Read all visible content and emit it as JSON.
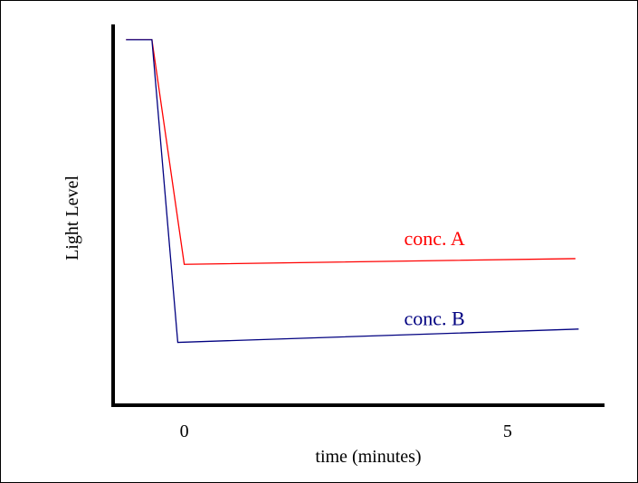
{
  "chart_data": {
    "type": "line",
    "title": "",
    "xlabel": "time (minutes)",
    "ylabel": "Light Level",
    "x_ticks": [
      {
        "value": 0,
        "label": "0"
      },
      {
        "value": 5,
        "label": "5"
      }
    ],
    "xlim": [
      -1.1,
      6.5
    ],
    "ylim": [
      0,
      1
    ],
    "grid": false,
    "legend": "none",
    "series": [
      {
        "name": "conc. A",
        "color": "#ff0000",
        "label_at": [
          3.4,
          0.42
        ],
        "points": [
          [
            -0.9,
            0.96
          ],
          [
            -0.5,
            0.96
          ],
          [
            0.0,
            0.37
          ],
          [
            6.05,
            0.385
          ]
        ]
      },
      {
        "name": "conc. B",
        "color": "#000080",
        "label_at": [
          3.4,
          0.21
        ],
        "points": [
          [
            -0.9,
            0.96
          ],
          [
            -0.5,
            0.96
          ],
          [
            -0.1,
            0.165
          ],
          [
            6.1,
            0.2
          ]
        ]
      }
    ]
  }
}
